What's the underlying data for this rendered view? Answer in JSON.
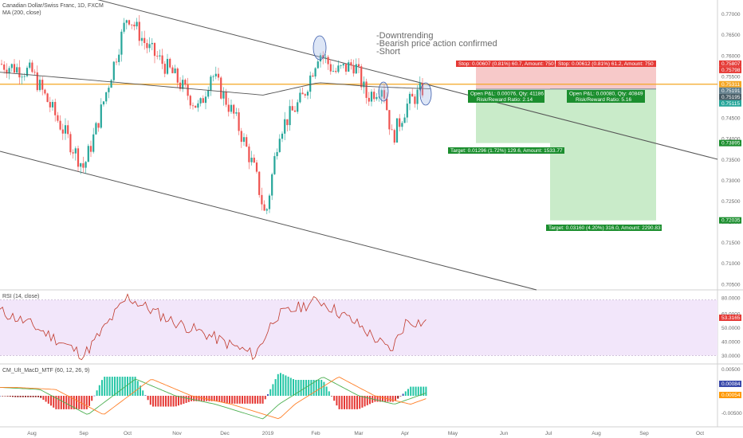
{
  "header": {
    "title": "Canadian Dollar/Swiss Franc, 1D, FXCM",
    "indicator": "MA (200, close)"
  },
  "annotations": {
    "lines": [
      "-Downtrending",
      "-Bearish price action confirmed",
      "-Short"
    ]
  },
  "colors": {
    "up": "#26a69a",
    "down": "#ef5350",
    "ma": "#555555",
    "horizontal": "#f5a623",
    "stop_zone": "#f7c9c9",
    "target_zone": "#c9ebc9",
    "rsi_band": "#f2e6fa",
    "rsi_line": "#c0392b"
  },
  "price_axis": {
    "ticks": [
      "0.77000",
      "0.76500",
      "0.76000",
      "0.75500",
      "0.75000",
      "0.74500",
      "0.74000",
      "0.73500",
      "0.73000",
      "0.72500",
      "0.72000",
      "0.71500",
      "0.71000",
      "0.70500"
    ],
    "badges": [
      {
        "text": "0.75807",
        "value": 0.75807,
        "color": "#e53935"
      },
      {
        "text": "0.75798",
        "value": 0.75798,
        "color": "#e53935"
      },
      {
        "text": "0.75311",
        "value": 0.75311,
        "color": "#f5a623"
      },
      {
        "text": "0.75191",
        "value": 0.75191,
        "color": "#607d8b"
      },
      {
        "text": "0.75195",
        "value": 0.75195,
        "color": "#455a64"
      },
      {
        "text": "0.75115",
        "value": 0.75115,
        "color": "#26a69a"
      },
      {
        "text": "0.73895",
        "value": 0.73895,
        "color": "#1b8e2e"
      },
      {
        "text": "0.72035",
        "value": 0.72035,
        "color": "#1b8e2e"
      }
    ]
  },
  "positions": [
    {
      "stop": "Stop: 0.00607 (0.81%) 60.7, Amount: 750",
      "open": "Open P&L: 0.00076, Qty: 41186",
      "rr": "Risk/Reward Ratio: 2.14",
      "target": "Target: 0.01296 (1.72%) 129.6, Amount: 1533.77",
      "entry": 0.75191,
      "stop_price": 0.75798,
      "target_price": 0.73895
    },
    {
      "stop": "Stop: 0.00612 (0.81%) 61.2, Amount: 750",
      "open": "Open P&L: 0.00080, Qty: 40849",
      "rr": "Risk/Reward Ratio: 5.16",
      "target": "Target: 0.03160 (4.20%) 316.0, Amount: 2290.83",
      "entry": 0.75195,
      "stop_price": 0.75807,
      "target_price": 0.72035
    }
  ],
  "rsi_panel": {
    "title": "RSI (14, close)",
    "ticks": [
      "80.0000",
      "60.0000",
      "50.0000",
      "40.0000",
      "30.0000"
    ],
    "badge": "53.3165"
  },
  "macd_panel": {
    "title": "CM_Ult_MacD_MTF (60, 12, 26, 9)",
    "ticks": [
      "0.00500",
      "-0.00500"
    ],
    "badges": [
      "0.00084",
      "0.00054"
    ]
  },
  "time_axis": {
    "labels": [
      "Aug",
      "Sep",
      "Oct",
      "Nov",
      "Dec",
      "2019",
      "Feb",
      "Mar",
      "Apr",
      "May",
      "Jun",
      "Jul",
      "Aug",
      "Sep",
      "Oct"
    ]
  },
  "chart_data": {
    "type": "candlestick",
    "title": "Canadian Dollar/Swiss Franc, 1D, FXCM",
    "x": [
      "Aug",
      "Sep",
      "Oct",
      "Nov",
      "Dec",
      "2019",
      "Feb",
      "Mar",
      "Apr"
    ],
    "close_approx": [
      0.7545,
      0.7355,
      0.77,
      0.751,
      0.748,
      0.725,
      0.7605,
      0.752,
      0.7519
    ],
    "ylim": [
      0.704,
      0.773
    ],
    "ma_200": [
      0.756,
      0.754,
      0.7515,
      0.752,
      0.7525,
      0.75,
      0.7535,
      0.753,
      0.7525
    ],
    "horizontal_level": 0.75311,
    "rsi": {
      "ylim": [
        25,
        75
      ],
      "values": [
        62,
        40,
        70,
        55,
        45,
        30,
        68,
        52,
        53.3
      ]
    },
    "macd": {
      "ylim": [
        -0.007,
        0.007
      ],
      "values": [
        0.002,
        -0.004,
        0.004,
        -0.001,
        -0.002,
        -0.005,
        0.004,
        -0.001,
        0.00084
      ]
    }
  }
}
